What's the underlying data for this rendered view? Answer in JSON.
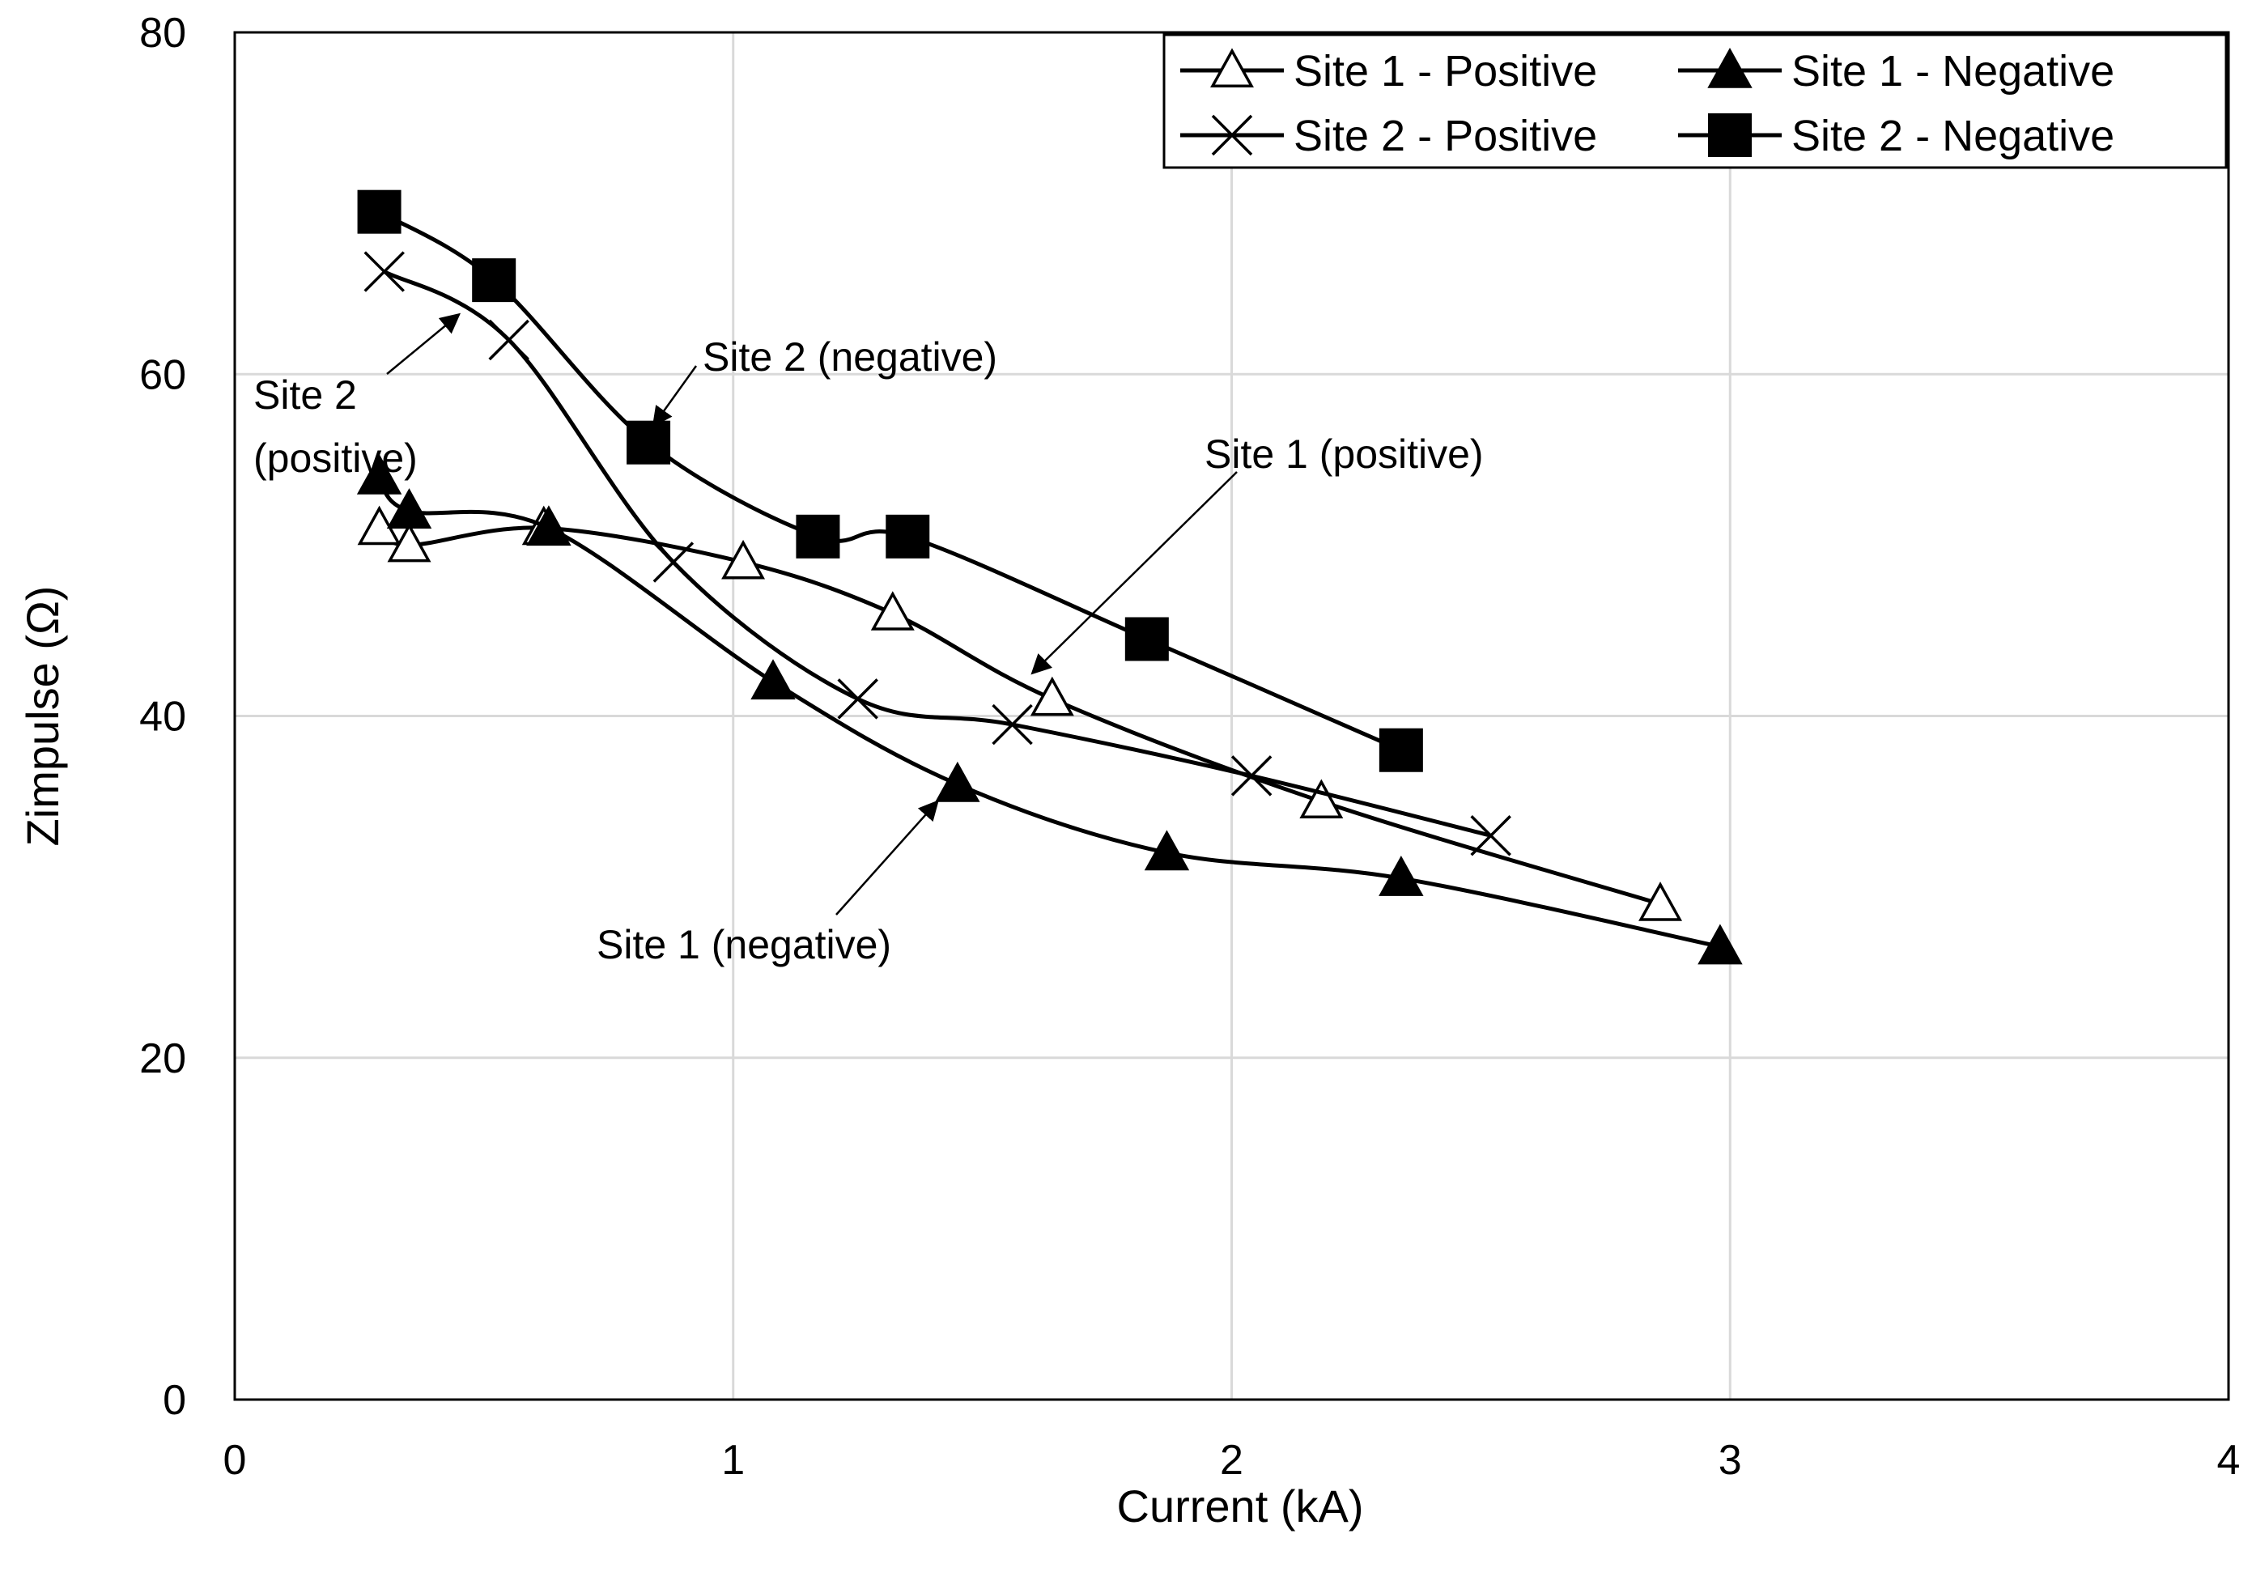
{
  "chart_data": {
    "type": "line",
    "title": "",
    "xlabel": "Current (kA)",
    "ylabel": "Zimpulse (Ω)",
    "xlim": [
      0,
      4
    ],
    "ylim": [
      0,
      80
    ],
    "xticks": [
      "0",
      "1",
      "2",
      "3",
      "4"
    ],
    "yticks": [
      "0",
      "20",
      "40",
      "60",
      "80"
    ],
    "grid": true,
    "legend_position": "top-right",
    "series": [
      {
        "name": "Site 1 - Positive",
        "marker": "open-triangle",
        "points": [
          [
            0.29,
            51
          ],
          [
            0.35,
            50
          ],
          [
            0.62,
            51
          ],
          [
            1.02,
            49
          ],
          [
            1.32,
            46
          ],
          [
            1.64,
            41
          ],
          [
            2.18,
            35
          ],
          [
            2.86,
            29
          ]
        ]
      },
      {
        "name": "Site 1 - Negative",
        "marker": "filled-triangle",
        "points": [
          [
            0.29,
            54
          ],
          [
            0.35,
            52
          ],
          [
            0.63,
            51
          ],
          [
            1.08,
            42
          ],
          [
            1.45,
            36
          ],
          [
            1.87,
            32
          ],
          [
            2.34,
            30.5
          ],
          [
            2.98,
            26.5
          ]
        ]
      },
      {
        "name": "Site 2 - Positive",
        "marker": "cross",
        "points": [
          [
            0.3,
            66
          ],
          [
            0.55,
            62
          ],
          [
            0.88,
            49
          ],
          [
            1.25,
            41
          ],
          [
            1.56,
            39.5
          ],
          [
            2.04,
            36.5
          ],
          [
            2.52,
            33
          ]
        ]
      },
      {
        "name": "Site 2 - Negative",
        "marker": "filled-square",
        "points": [
          [
            0.29,
            69.5
          ],
          [
            0.52,
            65.5
          ],
          [
            0.83,
            56
          ],
          [
            1.17,
            50.5
          ],
          [
            1.35,
            50.5
          ],
          [
            1.83,
            44.5
          ],
          [
            2.34,
            38
          ]
        ]
      }
    ],
    "annotations": [
      {
        "text_lines": [
          "Site 2",
          "(positive)"
        ],
        "target": [
          0.45,
          63.5
        ]
      },
      {
        "text_lines": [
          "Site 2 (negative)"
        ],
        "target": [
          0.84,
          57
        ]
      },
      {
        "text_lines": [
          "Site 1 (positive)"
        ],
        "target": [
          1.6,
          42.5
        ]
      },
      {
        "text_lines": [
          "Site 1 (negative)"
        ],
        "target": [
          1.41,
          35
        ]
      }
    ]
  }
}
